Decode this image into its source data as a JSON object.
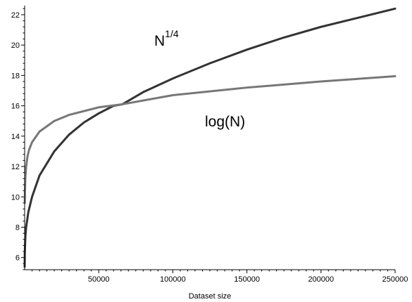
{
  "chart_data": {
    "type": "line",
    "title": "",
    "xlabel": "Dataset size",
    "ylabel": "",
    "xlim": [
      0,
      250000
    ],
    "ylim": [
      5.2,
      22.6
    ],
    "x_ticks": [
      50000,
      100000,
      150000,
      200000,
      250000
    ],
    "y_ticks": [
      6,
      8,
      10,
      12,
      14,
      16,
      18,
      20,
      22
    ],
    "grid": false,
    "legend": "none",
    "series": [
      {
        "label_base": "N",
        "label_exp": "1/4",
        "color": "#333333",
        "x": [
          0,
          100,
          500,
          1000,
          2500,
          5000,
          10000,
          20000,
          30000,
          40000,
          50000,
          60000,
          66000,
          80000,
          100000,
          125000,
          150000,
          175000,
          200000,
          225000,
          250000
        ],
        "y": [
          5.4,
          6.3,
          7.4,
          8.0,
          9.0,
          10.0,
          11.4,
          13.0,
          14.1,
          14.9,
          15.5,
          16.0,
          16.1,
          16.9,
          17.8,
          18.8,
          19.7,
          20.5,
          21.2,
          21.8,
          22.4
        ]
      },
      {
        "label": "log(N)",
        "color": "#777777",
        "x": [
          100,
          200,
          500,
          1000,
          2000,
          3000,
          5000,
          10000,
          20000,
          30000,
          50000,
          66000,
          100000,
          150000,
          200000,
          250000
        ],
        "y": [
          9.6,
          10.3,
          11.3,
          12.0,
          12.7,
          13.1,
          13.6,
          14.3,
          15.0,
          15.4,
          15.9,
          16.1,
          16.7,
          17.2,
          17.6,
          17.95
        ]
      }
    ]
  }
}
